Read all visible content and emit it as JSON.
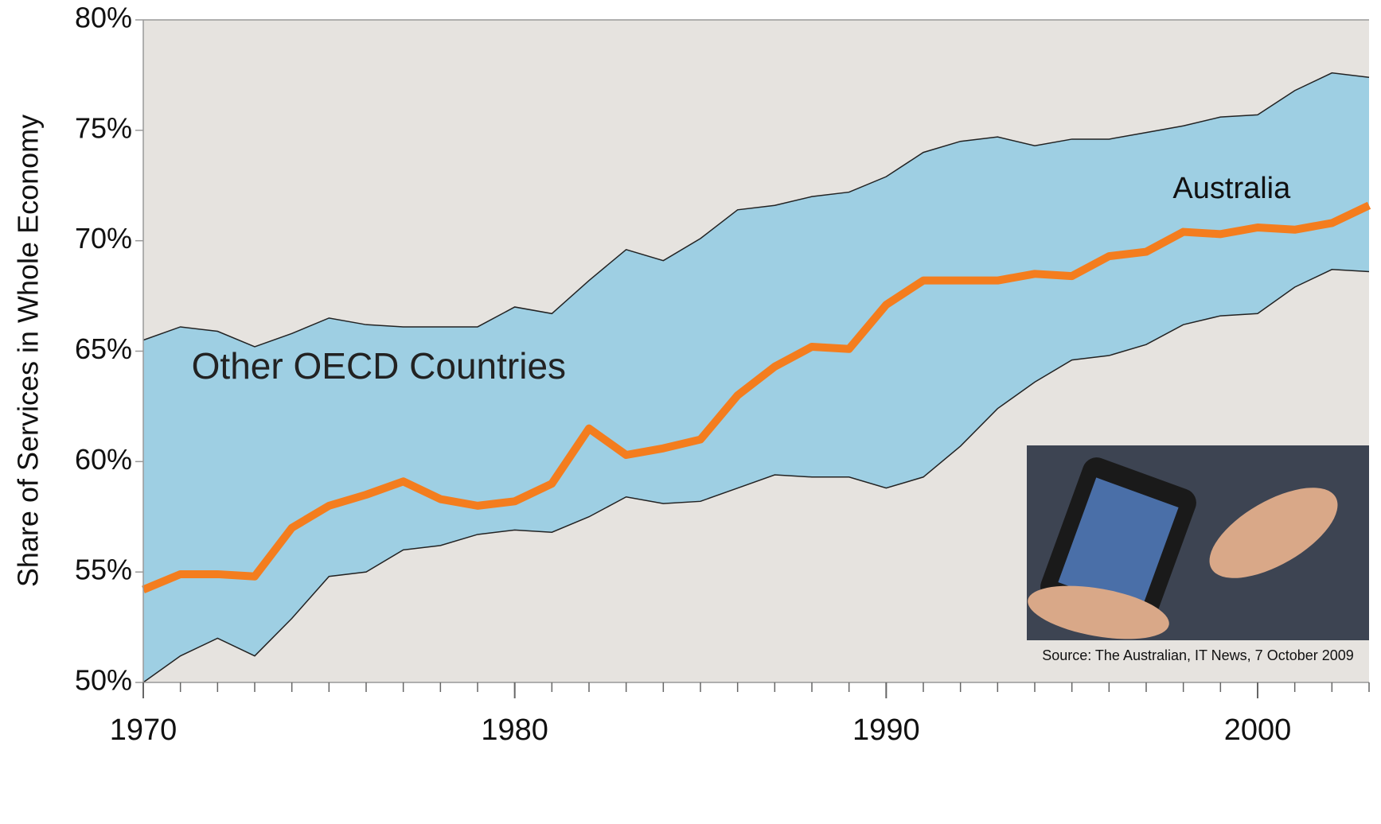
{
  "chart_data": {
    "type": "band-line",
    "ylabel": "Share of Services in Whole Economy",
    "x": [
      1970,
      1971,
      1972,
      1973,
      1974,
      1975,
      1976,
      1977,
      1978,
      1979,
      1980,
      1981,
      1982,
      1983,
      1984,
      1985,
      1986,
      1987,
      1988,
      1989,
      1990,
      1991,
      1992,
      1993,
      1994,
      1995,
      1996,
      1997,
      1998,
      1999,
      2000,
      2001,
      2002,
      2003
    ],
    "band": {
      "name": "Other OECD Countries",
      "color": "#9ecfe3",
      "upper": [
        65.5,
        66.1,
        65.9,
        65.2,
        65.8,
        66.5,
        66.2,
        66.1,
        66.1,
        66.1,
        67.0,
        66.7,
        68.2,
        69.6,
        69.1,
        70.1,
        71.4,
        71.6,
        72.0,
        72.2,
        72.9,
        74.0,
        74.5,
        74.7,
        74.3,
        74.6,
        74.6,
        74.9,
        75.2,
        75.6,
        75.7,
        76.8,
        77.6,
        77.4
      ],
      "lower": [
        50.0,
        51.2,
        52.0,
        51.2,
        52.9,
        54.8,
        55.0,
        56.0,
        56.2,
        56.7,
        56.9,
        56.8,
        57.5,
        58.4,
        58.1,
        58.2,
        58.8,
        59.4,
        59.3,
        59.3,
        58.8,
        59.3,
        60.7,
        62.4,
        63.6,
        64.6,
        64.8,
        65.3,
        66.2,
        66.6,
        66.7,
        67.9,
        68.7,
        68.6
      ]
    },
    "series": [
      {
        "name": "Australia",
        "color": "#f47d1e",
        "values": [
          54.2,
          54.9,
          54.9,
          54.8,
          57.0,
          58.0,
          58.5,
          59.1,
          58.3,
          58.0,
          58.2,
          59.0,
          61.5,
          60.3,
          60.6,
          61.0,
          63.0,
          64.3,
          65.2,
          65.1,
          67.1,
          68.2,
          68.2,
          68.2,
          68.5,
          68.4,
          69.3,
          69.5,
          70.4,
          70.3,
          70.6,
          70.5,
          70.8,
          71.6
        ]
      }
    ],
    "xlim": [
      1970,
      2003
    ],
    "xticks": [
      1970,
      1980,
      1990,
      2000
    ],
    "ylim": [
      50,
      80
    ],
    "yticks": [
      {
        "value": 50,
        "label": "50%"
      },
      {
        "value": 55,
        "label": "55%"
      },
      {
        "value": 60,
        "label": "60%"
      },
      {
        "value": 65,
        "label": "65%"
      },
      {
        "value": 70,
        "label": "70%"
      },
      {
        "value": 75,
        "label": "75%"
      },
      {
        "value": 80,
        "label": "80%"
      }
    ],
    "source": "Source: The Australian, IT News, 7 October 2009"
  }
}
